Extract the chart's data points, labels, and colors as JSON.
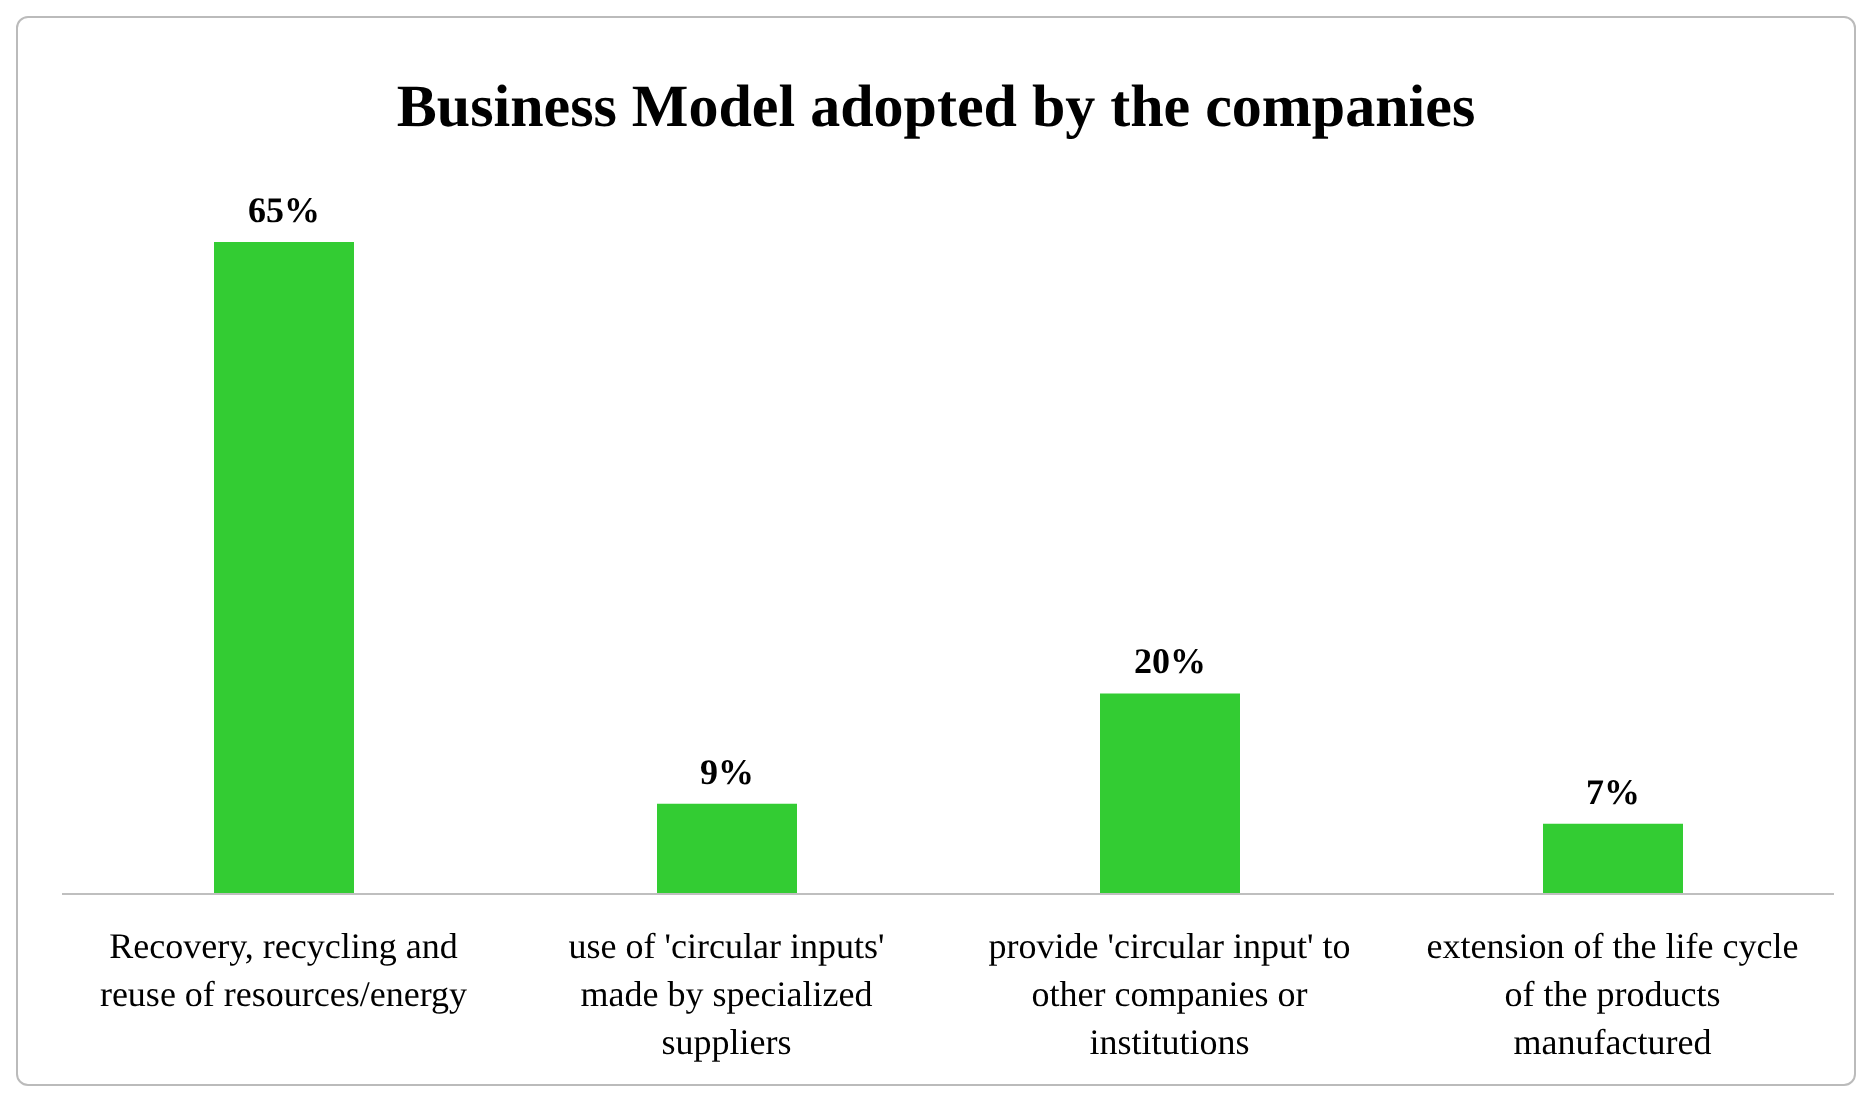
{
  "chart_data": {
    "type": "bar",
    "title": "Business Model adopted by the companies",
    "categories": [
      "Recovery, recycling and reuse of resources/energy",
      "use of 'circular inputs' made by specialized suppliers",
      "provide 'circular input' to other companies or institutions",
      "extension of the life cycle of the products manufactured"
    ],
    "values": [
      65,
      9,
      20,
      7
    ],
    "value_labels": [
      "65%",
      "9%",
      "20%",
      "7%"
    ],
    "color": "#33cc33",
    "grid": false,
    "legend": false
  }
}
